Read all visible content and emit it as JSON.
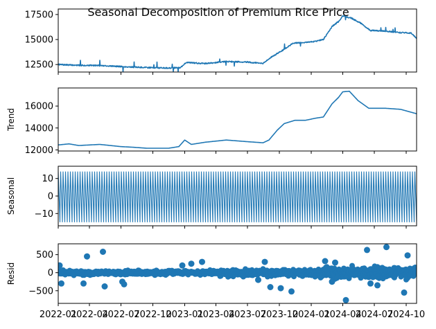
{
  "chart_data": {
    "type": "line",
    "title": "Seasonal Decomposition of Premium Rice Price",
    "x_range": [
      "2022-01-01",
      "2024-10-31"
    ],
    "x_tick_labels": [
      "2022-01",
      "2022-04",
      "2022-07",
      "2022-10",
      "2023-01",
      "2023-04",
      "2023-07",
      "2023-10",
      "2024-01",
      "2024-04",
      "2024-07",
      "2024-10"
    ],
    "panels": [
      {
        "name": "observed",
        "ylabel": "",
        "ylim": [
          11750,
          18050
        ],
        "yticks": [
          12500,
          15000,
          17500
        ],
        "ytick_labels": [
          "12500",
          "15000",
          "17500"
        ],
        "x": [
          "2022-01-01",
          "2022-03-01",
          "2022-05-01",
          "2022-07-01",
          "2022-08-01",
          "2022-09-15",
          "2022-11-15",
          "2022-12-20",
          "2023-01-05",
          "2023-03-01",
          "2023-05-01",
          "2023-07-01",
          "2023-08-15",
          "2023-09-10",
          "2023-10-10",
          "2023-11-10",
          "2023-12-10",
          "2024-01-10",
          "2024-02-05",
          "2024-03-01",
          "2024-03-20",
          "2024-04-01",
          "2024-04-25",
          "2024-05-20",
          "2024-06-20",
          "2024-08-01",
          "2024-09-10",
          "2024-10-15",
          "2024-10-31"
        ],
        "values": [
          12500,
          12420,
          12400,
          12300,
          12250,
          12200,
          12150,
          12200,
          12700,
          12600,
          12800,
          12750,
          12600,
          13300,
          13900,
          14650,
          14700,
          14800,
          15000,
          16300,
          16800,
          17350,
          17150,
          16700,
          15900,
          15850,
          15700,
          15650,
          15100
        ]
      },
      {
        "name": "trend",
        "ylabel": "Trend",
        "ylim": [
          11900,
          17650
        ],
        "yticks": [
          12000,
          14000,
          16000
        ],
        "ytick_labels": [
          "12000",
          "14000",
          "16000"
        ],
        "x": [
          "2022-01-01",
          "2022-02-01",
          "2022-03-01",
          "2022-05-01",
          "2022-07-01",
          "2022-08-01",
          "2022-09-15",
          "2022-11-15",
          "2022-12-15",
          "2023-01-01",
          "2023-01-20",
          "2023-03-01",
          "2023-05-01",
          "2023-07-01",
          "2023-08-15",
          "2023-09-01",
          "2023-09-25",
          "2023-10-15",
          "2023-11-15",
          "2023-12-15",
          "2024-01-15",
          "2024-02-05",
          "2024-03-01",
          "2024-03-20",
          "2024-04-01",
          "2024-04-20",
          "2024-05-15",
          "2024-06-15",
          "2024-08-01",
          "2024-09-15",
          "2024-10-31"
        ],
        "values": [
          12450,
          12550,
          12400,
          12500,
          12300,
          12250,
          12150,
          12150,
          12300,
          12900,
          12500,
          12700,
          12900,
          12750,
          12650,
          12900,
          13800,
          14400,
          14700,
          14700,
          14900,
          15000,
          16200,
          16800,
          17300,
          17350,
          16500,
          15800,
          15800,
          15700,
          15300
        ]
      },
      {
        "name": "seasonal",
        "ylabel": "Seasonal",
        "ylim": [
          -17,
          17
        ],
        "yticks": [
          -10,
          0,
          10
        ],
        "ytick_labels": [
          "−10",
          "0",
          "10"
        ],
        "period_days": 7,
        "weekly_pattern": [
          14,
          8,
          2,
          -3,
          -9,
          -15,
          3
        ]
      },
      {
        "name": "resid",
        "ylabel": "Resid",
        "ylim": [
          -850,
          800
        ],
        "yticks": [
          -500,
          0,
          500
        ],
        "ytick_labels": [
          "−500",
          "0",
          "500"
        ],
        "x": [
          "2022-01-05",
          "2022-01-10",
          "2022-03-15",
          "2022-03-25",
          "2022-05-10",
          "2022-05-15",
          "2022-07-05",
          "2022-07-10",
          "2022-12-25",
          "2023-01-20",
          "2023-02-20",
          "2023-08-01",
          "2023-08-20",
          "2023-09-05",
          "2023-10-05",
          "2023-11-05",
          "2024-02-10",
          "2024-03-01",
          "2024-03-10",
          "2024-04-10",
          "2024-06-10",
          "2024-06-20",
          "2024-07-10",
          "2024-08-05",
          "2024-09-25",
          "2024-10-05"
        ],
        "values": [
          200,
          -300,
          -300,
          450,
          580,
          -380,
          -250,
          -320,
          200,
          250,
          300,
          -200,
          300,
          -400,
          -430,
          -520,
          320,
          -250,
          280,
          -760,
          630,
          -300,
          -350,
          710,
          -550,
          480
        ]
      }
    ]
  }
}
